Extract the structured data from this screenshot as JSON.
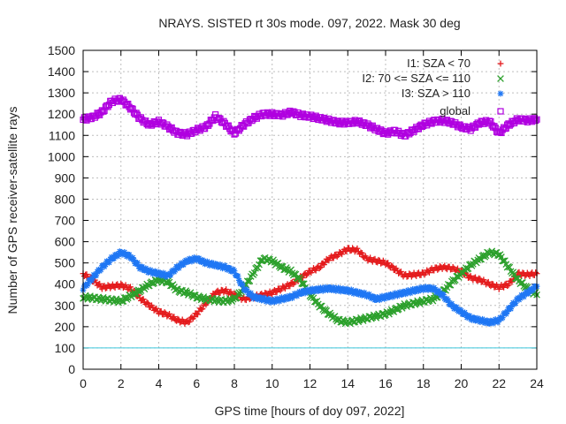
{
  "chart_data": {
    "type": "scatter",
    "title": "NRAYS. SISTED rt 30s mode. 097, 2022. Mask 30 deg",
    "xlabel": "GPS time [hours of doy 097, 2022]",
    "ylabel": "Number of GPS receiver-satellite rays",
    "xlim": [
      0,
      24
    ],
    "ylim": [
      0,
      1500
    ],
    "xticks": [
      "0",
      "2",
      "4",
      "6",
      "8",
      "10",
      "12",
      "14",
      "16",
      "18",
      "20",
      "22",
      "24"
    ],
    "yticks": [
      "0",
      "100",
      "200",
      "300",
      "400",
      "500",
      "600",
      "700",
      "800",
      "900",
      "1000",
      "1100",
      "1200",
      "1300",
      "1400",
      "1500"
    ],
    "grid": true,
    "legend_position": "top-right",
    "threshold_line": 100,
    "series": [
      {
        "name": "I1: SZA < 70",
        "color": "#e41a1c",
        "marker": "+",
        "x": [
          0,
          0.5,
          1,
          1.5,
          2,
          2.5,
          3,
          3.5,
          4,
          4.5,
          5,
          5.5,
          6,
          6.5,
          7,
          7.5,
          8,
          8.5,
          9,
          9.5,
          10,
          10.5,
          11,
          11.5,
          12,
          12.5,
          13,
          13.5,
          14,
          14.5,
          15,
          15.5,
          16,
          16.5,
          17,
          17.5,
          18,
          18.5,
          19,
          19.5,
          20,
          20.5,
          21,
          21.5,
          22,
          22.5,
          23,
          23.5,
          24
        ],
        "y": [
          450,
          420,
          385,
          390,
          395,
          380,
          335,
          300,
          270,
          255,
          230,
          220,
          260,
          310,
          360,
          370,
          350,
          330,
          340,
          350,
          360,
          380,
          400,
          430,
          460,
          480,
          520,
          540,
          565,
          560,
          520,
          510,
          500,
          470,
          440,
          445,
          450,
          470,
          480,
          475,
          460,
          430,
          420,
          400,
          385,
          400,
          450,
          445,
          450
        ]
      },
      {
        "name": "I2: 70 <= SZA <= 110",
        "color": "#2ca02c",
        "marker": "x",
        "x": [
          0,
          0.5,
          1,
          1.5,
          2,
          2.5,
          3,
          3.5,
          4,
          4.5,
          5,
          5.5,
          6,
          6.5,
          7,
          7.5,
          8,
          8.5,
          9,
          9.5,
          10,
          10.5,
          11,
          11.5,
          12,
          12.5,
          13,
          13.5,
          14,
          14.5,
          15,
          15.5,
          16,
          16.5,
          17,
          17.5,
          18,
          18.5,
          19,
          19.5,
          20,
          20.5,
          21,
          21.5,
          22,
          22.5,
          23,
          23.5,
          24
        ],
        "y": [
          340,
          335,
          330,
          325,
          320,
          345,
          370,
          400,
          420,
          410,
          370,
          360,
          340,
          330,
          325,
          320,
          330,
          380,
          450,
          520,
          510,
          480,
          460,
          420,
          350,
          300,
          260,
          230,
          220,
          230,
          240,
          250,
          260,
          280,
          300,
          310,
          320,
          330,
          360,
          410,
          450,
          490,
          520,
          550,
          540,
          480,
          420,
          380,
          350
        ]
      },
      {
        "name": "I3: SZA > 110",
        "color": "#1f77f4",
        "marker": "*",
        "x": [
          0,
          0.5,
          1,
          1.5,
          2,
          2.5,
          3,
          3.5,
          4,
          4.5,
          5,
          5.5,
          6,
          6.5,
          7,
          7.5,
          8,
          8.5,
          9,
          9.5,
          10,
          10.5,
          11,
          11.5,
          12,
          12.5,
          13,
          13.5,
          14,
          14.5,
          15,
          15.5,
          16,
          16.5,
          17,
          17.5,
          18,
          18.5,
          19,
          19.5,
          20,
          20.5,
          21,
          21.5,
          22,
          22.5,
          23,
          23.5,
          24
        ],
        "y": [
          380,
          430,
          480,
          520,
          550,
          530,
          480,
          460,
          450,
          440,
          480,
          510,
          520,
          500,
          490,
          480,
          460,
          380,
          340,
          330,
          320,
          330,
          340,
          360,
          370,
          375,
          380,
          375,
          370,
          360,
          350,
          330,
          340,
          350,
          360,
          370,
          380,
          380,
          350,
          300,
          270,
          240,
          230,
          220,
          230,
          280,
          330,
          360,
          390
        ]
      },
      {
        "name": "global",
        "color": "#b000e0",
        "marker": "square",
        "x": [
          0,
          0.5,
          1,
          1.5,
          2,
          2.5,
          3,
          3.5,
          4,
          4.5,
          5,
          5.5,
          6,
          6.5,
          7,
          7.5,
          8,
          8.5,
          9,
          9.5,
          10,
          10.5,
          11,
          11.5,
          12,
          12.5,
          13,
          13.5,
          14,
          14.5,
          15,
          15.5,
          16,
          16.5,
          17,
          17.5,
          18,
          18.5,
          19,
          19.5,
          20,
          20.5,
          21,
          21.5,
          22,
          22.5,
          23,
          23.5,
          24
        ],
        "y": [
          1175,
          1185,
          1210,
          1260,
          1270,
          1230,
          1180,
          1150,
          1165,
          1140,
          1110,
          1105,
          1125,
          1140,
          1190,
          1155,
          1110,
          1150,
          1180,
          1200,
          1200,
          1195,
          1210,
          1195,
          1190,
          1180,
          1170,
          1160,
          1160,
          1165,
          1150,
          1130,
          1110,
          1120,
          1100,
          1125,
          1150,
          1165,
          1170,
          1160,
          1140,
          1130,
          1160,
          1165,
          1110,
          1150,
          1175,
          1170,
          1175
        ]
      }
    ]
  }
}
